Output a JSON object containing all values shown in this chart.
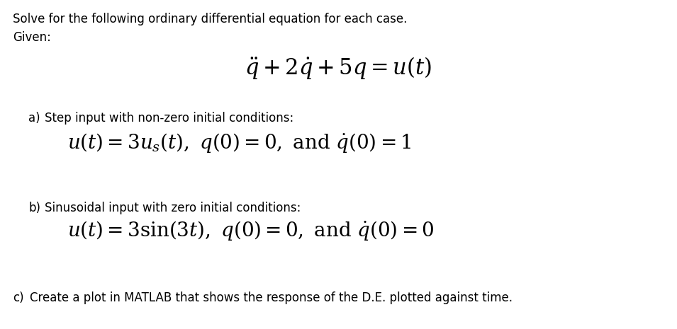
{
  "background_color": "#ffffff",
  "fig_width": 9.55,
  "fig_height": 4.65,
  "dpi": 100,
  "text_color": "#000000",
  "intro_line1": "Solve for the following ordinary differential equation for each case.",
  "intro_line2": "Given:",
  "desc_a": "Step input with non-zero initial conditions:",
  "desc_b": "Sinusoidal input with zero initial conditions:",
  "desc_c": "Create a plot in MATLAB that shows the response of the D.E. plotted against time.",
  "intro_fontsize": 12,
  "main_eq_fontsize": 22,
  "label_fontsize": 12,
  "eq_a_fontsize": 20,
  "eq_b_fontsize": 20,
  "desc_fontsize": 12
}
